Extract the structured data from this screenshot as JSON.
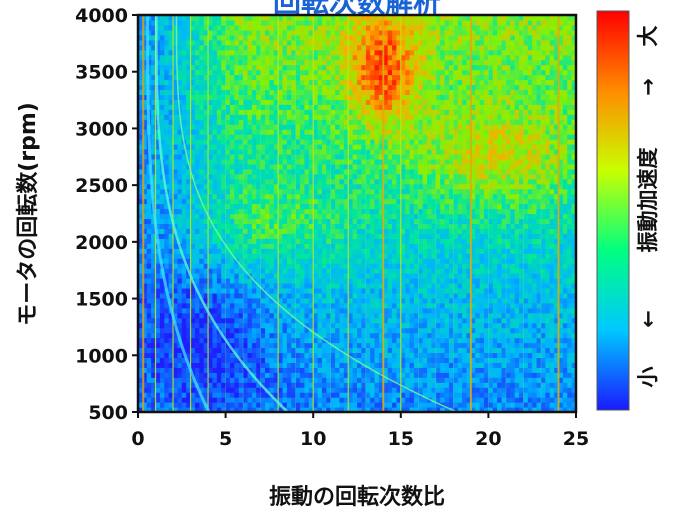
{
  "chart_data": {
    "type": "heatmap",
    "title": "回転次数解析",
    "xlabel": "振動の回転次数比",
    "ylabel": "モータの回転数(rpm)",
    "xlim": [
      0,
      25
    ],
    "ylim": [
      500,
      4000
    ],
    "x_ticks": [
      "0",
      "5",
      "10",
      "15",
      "20",
      "25"
    ],
    "y_ticks": [
      "500",
      "1000",
      "1500",
      "2000",
      "2500",
      "3000",
      "3500",
      "4000"
    ],
    "colorbar": {
      "small_label": "小",
      "small_arrow": "←",
      "label": "振動加速度",
      "large_arrow": "→",
      "large_label": "大",
      "colors": [
        "#1a1aff",
        "#00c8ff",
        "#00ff80",
        "#c8ff00",
        "#ff8c00",
        "#ff0000"
      ]
    },
    "strong_orders": [
      0.3,
      1,
      2,
      3,
      4,
      8,
      10,
      12,
      14,
      15,
      19,
      24
    ],
    "high_amplitude_regions": [
      {
        "x_range": [
          12,
          16
        ],
        "y_range": [
          3000,
          4000
        ],
        "level": "high"
      },
      {
        "x_range": [
          16,
          25
        ],
        "y_range": [
          2300,
          3200
        ],
        "level": "medium-high"
      },
      {
        "x_range": [
          4,
          12
        ],
        "y_range": [
          1800,
          2500
        ],
        "level": "medium"
      }
    ],
    "low_amplitude_regions": [
      {
        "x_range": [
          0,
          8
        ],
        "y_range": [
          500,
          1800
        ],
        "level": "low"
      }
    ]
  }
}
